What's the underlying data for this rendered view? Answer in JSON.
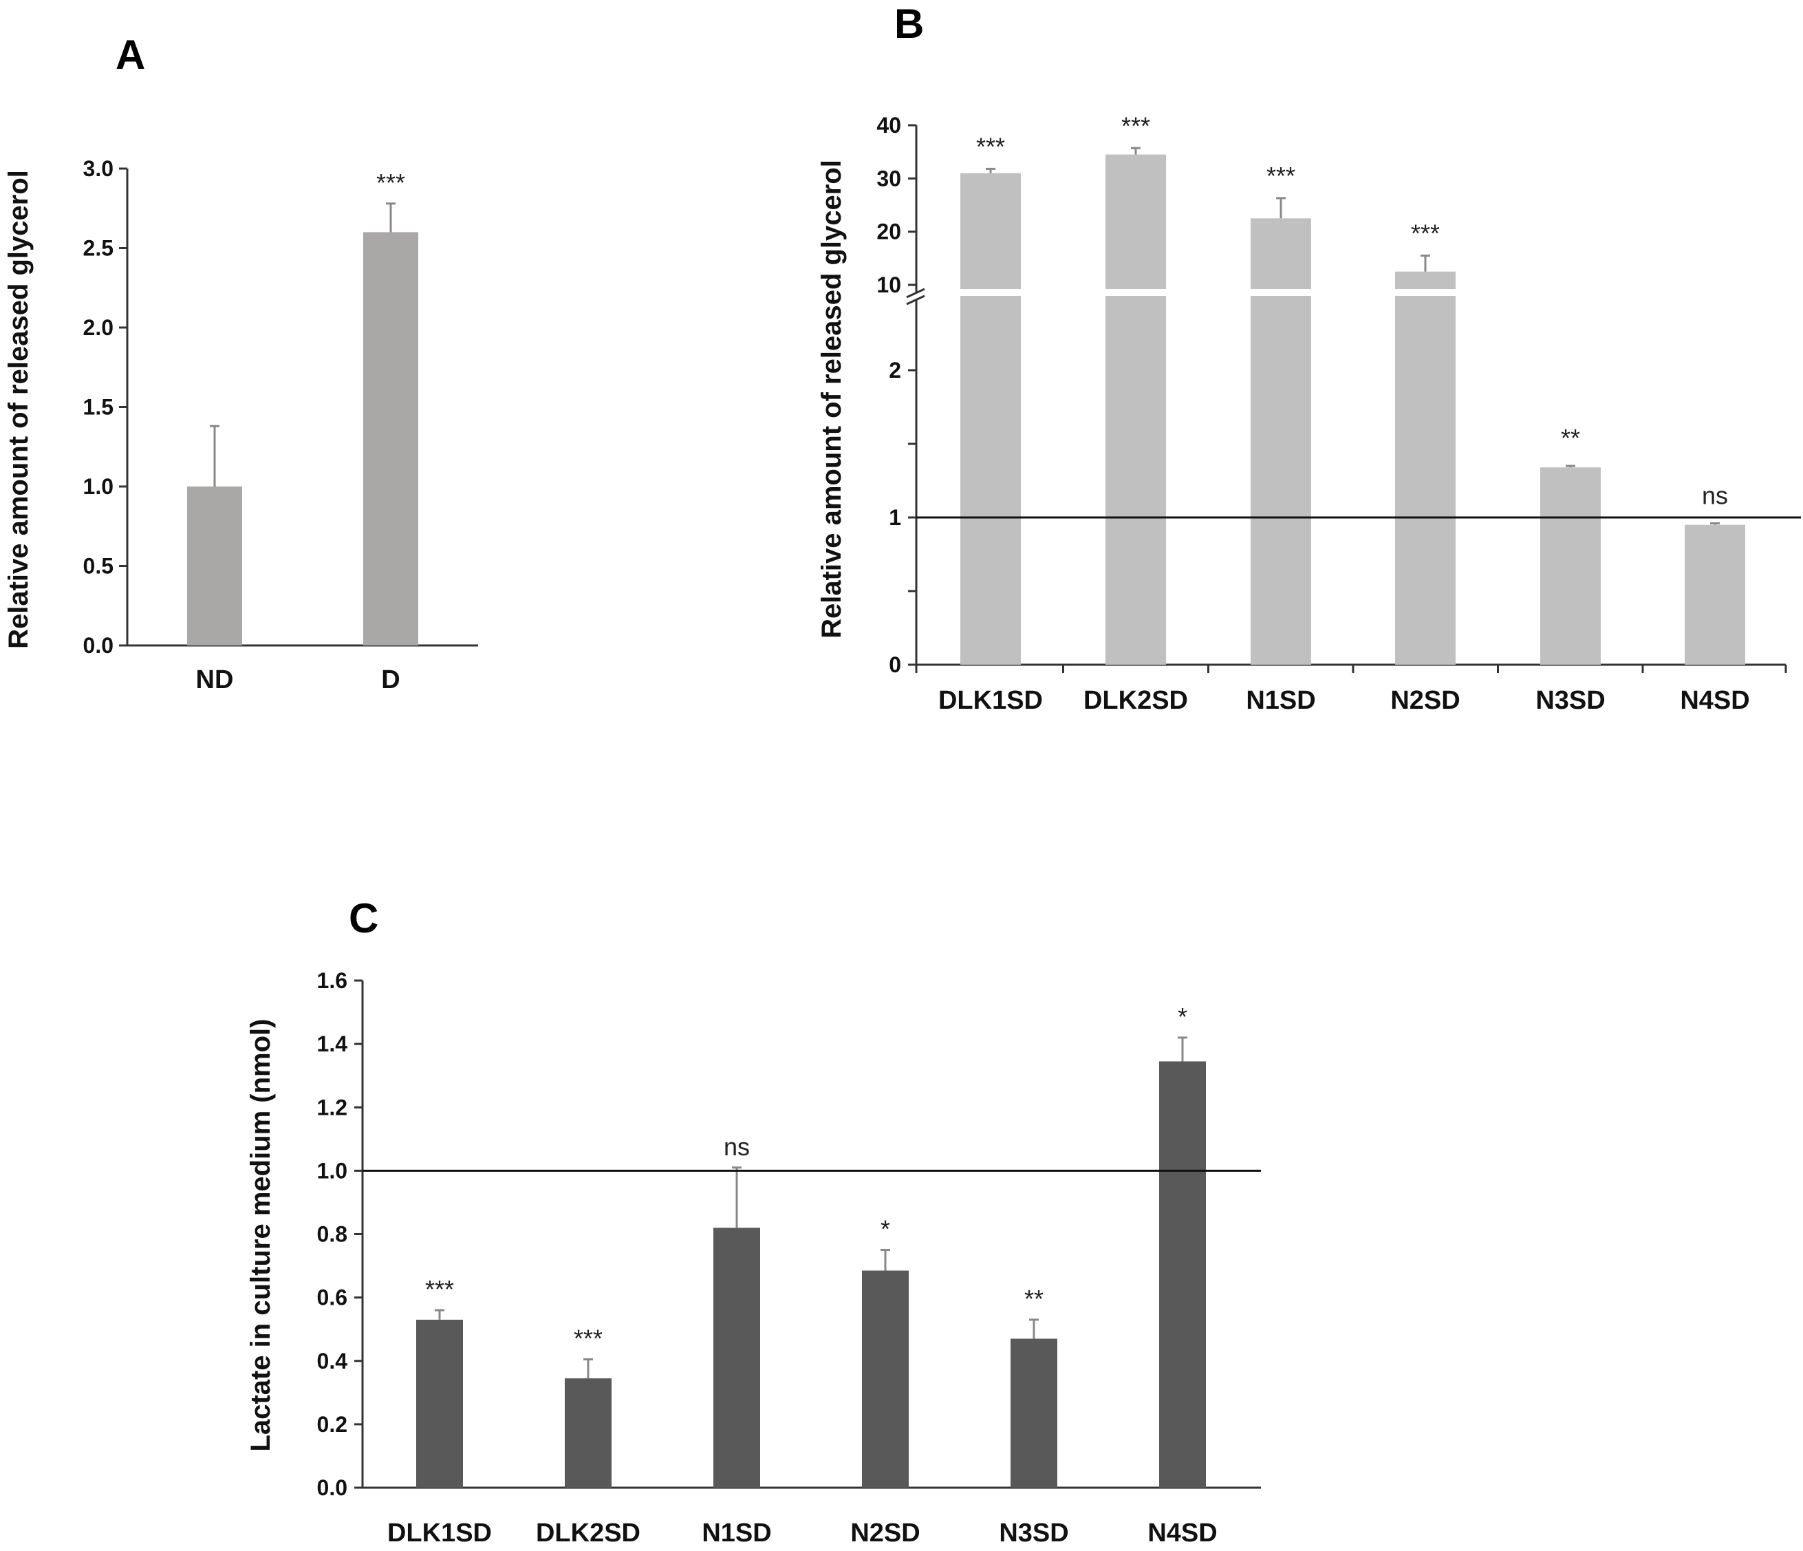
{
  "panels": {
    "a": {
      "label": "A"
    },
    "b": {
      "label": "B"
    },
    "c": {
      "label": "C"
    }
  },
  "chart_data": [
    {
      "id": "A",
      "type": "bar",
      "title": "",
      "xlabel": "",
      "ylabel": "Relative amount of released glycerol",
      "categories": [
        "ND",
        "D"
      ],
      "values": [
        1.0,
        2.6
      ],
      "errors": [
        0.38,
        0.18
      ],
      "significance": [
        "",
        "***"
      ],
      "ylim": [
        0,
        3.0
      ],
      "yticks": [
        "0.0",
        "0.5",
        "1.0",
        "1.5",
        "2.0",
        "2.5",
        "3.0"
      ],
      "bar_color": "#aaa7a7"
    },
    {
      "id": "B",
      "type": "bar",
      "title": "",
      "xlabel": "",
      "ylabel": "Relative amount of released glycerol",
      "categories": [
        "DLK1SD",
        "DLK2SD",
        "N1SD",
        "N2SD",
        "N3SD",
        "N4SD"
      ],
      "values": [
        31,
        34.5,
        22.5,
        12.5,
        1.34,
        0.95
      ],
      "errors": [
        0.8,
        1.2,
        3.8,
        3.0,
        0.01,
        0.01
      ],
      "significance": [
        "***",
        "***",
        "***",
        "***",
        "**",
        "ns"
      ],
      "broken_axis": true,
      "lower_ylim": [
        0,
        2.5
      ],
      "upper_ylim": [
        10,
        40
      ],
      "yticks_lower": [
        "0",
        "1",
        "2"
      ],
      "yticks_upper": [
        "10",
        "20",
        "30",
        "40"
      ],
      "reference_line": 1,
      "bar_color": "#c0c0c0"
    },
    {
      "id": "C",
      "type": "bar",
      "title": "",
      "xlabel": "",
      "ylabel": "Lactate in culture medium (nmol)",
      "categories": [
        "DLK1SD",
        "DLK2SD",
        "N1SD",
        "N2SD",
        "N3SD",
        "N4SD"
      ],
      "values": [
        0.53,
        0.345,
        0.82,
        0.685,
        0.47,
        1.345
      ],
      "errors": [
        0.03,
        0.06,
        0.19,
        0.065,
        0.06,
        0.075
      ],
      "significance": [
        "***",
        "***",
        "ns",
        "*",
        "**",
        "*"
      ],
      "ylim": [
        0,
        1.6
      ],
      "yticks": [
        "0.0",
        "0.2",
        "0.4",
        "0.6",
        "0.8",
        "1.0",
        "1.2",
        "1.4",
        "1.6"
      ],
      "reference_line": 1.0,
      "bar_color": "#595959"
    }
  ]
}
